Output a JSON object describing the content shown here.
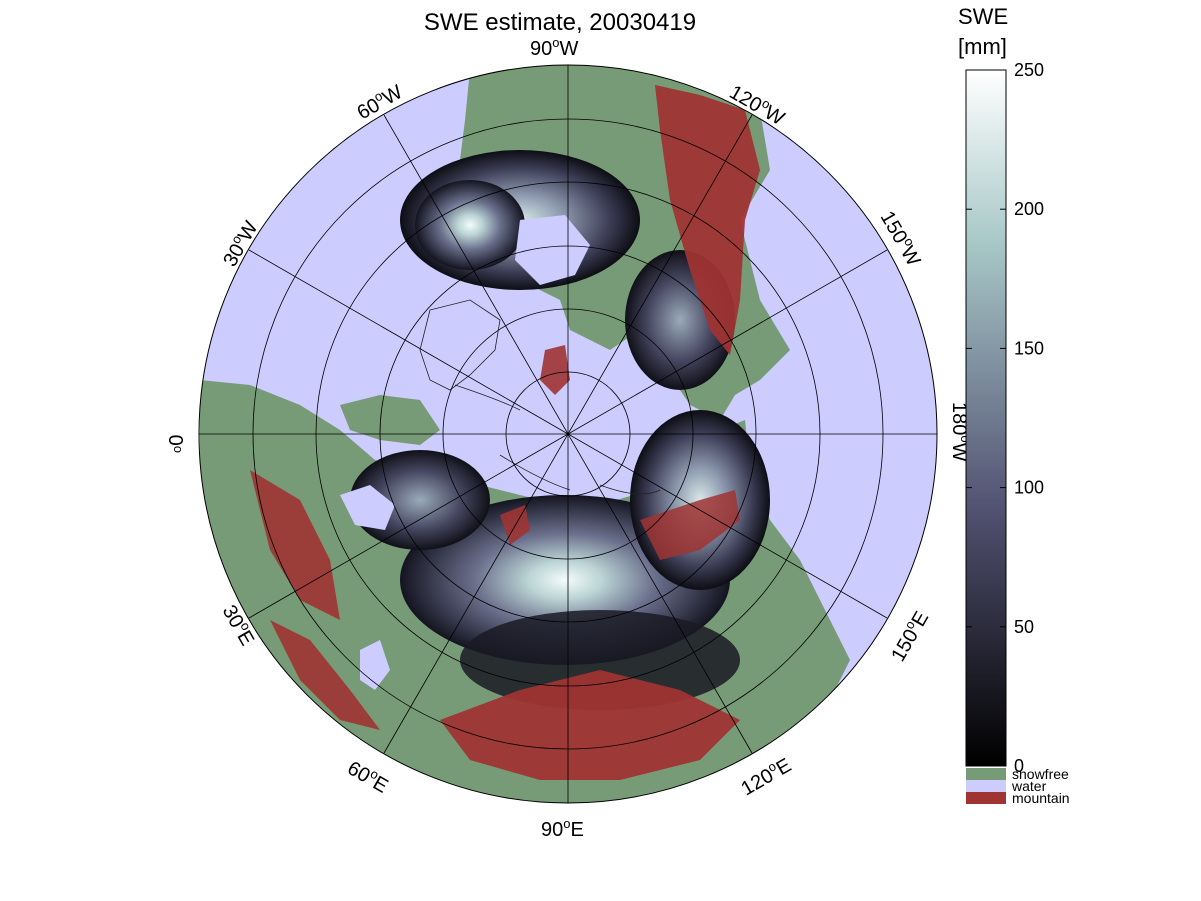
{
  "figure": {
    "title": "SWE estimate, 20030419"
  },
  "map": {
    "projection": "north polar stereographic",
    "ocean_color": "#ccccff",
    "snowfree_color": "#779b76",
    "mountain_color": "#9f3433",
    "longitude_labels": {
      "lon_90w": "90",
      "lon_120w": "120",
      "lon_150w": "150",
      "lon_180w": "180",
      "lon_150e": "150",
      "lon_120e": "120",
      "lon_90e": "90",
      "lon_60e": "60",
      "lon_30e": "30",
      "lon_0": "0",
      "lon_30w": "30",
      "lon_60w": "60"
    },
    "suffix_w": "W",
    "suffix_e": "E",
    "degree_symbol": "o"
  },
  "colorbar": {
    "title_line1": "SWE",
    "title_line2": "[mm]",
    "colormap": "bone",
    "range": [
      0,
      250
    ],
    "tick_labels": [
      "0",
      "50",
      "100",
      "150",
      "200",
      "250"
    ],
    "categories": [
      {
        "label": "snowfree",
        "color": "#779b76"
      },
      {
        "label": "water",
        "color": "#ccccff"
      },
      {
        "label": "mountain",
        "color": "#9f3433"
      }
    ]
  }
}
